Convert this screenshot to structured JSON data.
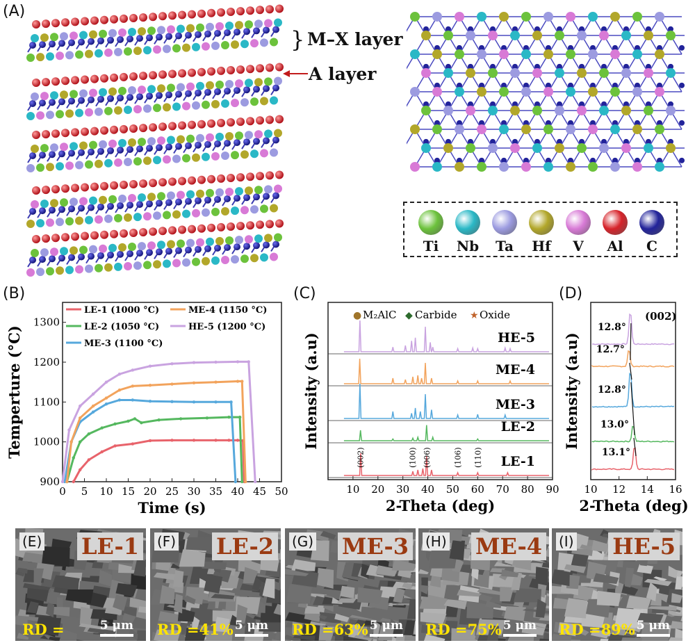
{
  "panels": {
    "A": "(A)",
    "B": "(B)",
    "C": "(C)",
    "D": "(D)",
    "E": "(E)",
    "F": "(F)",
    "G": "(G)",
    "H": "(H)",
    "I": "(I)"
  },
  "structure": {
    "mx_layer_label": "M–X layer",
    "a_layer_label": "A layer",
    "elements": [
      {
        "symbol": "Ti",
        "color": "#6cc23c"
      },
      {
        "symbol": "Nb",
        "color": "#2ab8c6"
      },
      {
        "symbol": "Ta",
        "color": "#9c9be0"
      },
      {
        "symbol": "Hf",
        "color": "#b2a72a"
      },
      {
        "symbol": "V",
        "color": "#d87ad6"
      },
      {
        "symbol": "Al",
        "color": "#d6232a"
      },
      {
        "symbol": "C",
        "color": "#22239a"
      }
    ]
  },
  "chart_data": [
    {
      "type": "line",
      "ylabel": "Temperture  (°C)",
      "xlabel": "Time (s)",
      "xlim": [
        0,
        50
      ],
      "ylim": [
        900,
        1350
      ],
      "xticks": [
        0,
        5,
        10,
        15,
        20,
        25,
        30,
        35,
        40,
        45,
        50
      ],
      "yticks": [
        900,
        1000,
        1100,
        1200,
        1300
      ],
      "legend": "top",
      "series": [
        {
          "name": "LE-1  (1000 °C)",
          "color": "#e8636b",
          "points": [
            [
              2.5,
              900
            ],
            [
              4,
              930
            ],
            [
              6,
              955
            ],
            [
              9,
              975
            ],
            [
              12,
              990
            ],
            [
              16,
              995
            ],
            [
              20,
              1003
            ],
            [
              25,
              1004
            ],
            [
              30,
              1004
            ],
            [
              35,
              1004
            ],
            [
              38,
              1004
            ],
            [
              40,
              1004
            ],
            [
              41.2,
              1003
            ],
            [
              41.5,
              900
            ]
          ]
        },
        {
          "name": "LE-2  (1050 °C)",
          "color": "#55b85f",
          "points": [
            [
              1,
              900
            ],
            [
              2.5,
              960
            ],
            [
              4,
              1000
            ],
            [
              6,
              1020
            ],
            [
              9,
              1035
            ],
            [
              12,
              1045
            ],
            [
              15,
              1052
            ],
            [
              16.5,
              1058
            ],
            [
              18,
              1048
            ],
            [
              22,
              1055
            ],
            [
              27,
              1058
            ],
            [
              33,
              1060
            ],
            [
              38,
              1062
            ],
            [
              40.5,
              1062
            ],
            [
              41,
              900
            ]
          ]
        },
        {
          "name": "ME-3 (1100 °C)",
          "color": "#56a8dc",
          "points": [
            [
              0.5,
              900
            ],
            [
              2,
              1000
            ],
            [
              4,
              1050
            ],
            [
              7,
              1075
            ],
            [
              10,
              1095
            ],
            [
              13,
              1105
            ],
            [
              16,
              1105
            ],
            [
              20,
              1102
            ],
            [
              25,
              1101
            ],
            [
              30,
              1100
            ],
            [
              35,
              1100
            ],
            [
              38.5,
              1100
            ],
            [
              39.5,
              900
            ]
          ]
        },
        {
          "name": "ME-4 (1150 °C)",
          "color": "#f2a35c",
          "points": [
            [
              1,
              900
            ],
            [
              2,
              1000
            ],
            [
              4,
              1060
            ],
            [
              7,
              1090
            ],
            [
              10,
              1110
            ],
            [
              13,
              1130
            ],
            [
              16,
              1140
            ],
            [
              20,
              1142
            ],
            [
              25,
              1145
            ],
            [
              30,
              1148
            ],
            [
              35,
              1150
            ],
            [
              40,
              1152
            ],
            [
              41,
              1152
            ],
            [
              41.8,
              900
            ]
          ]
        },
        {
          "name": "HE-5  (1200 °C)",
          "color": "#c9a3e0",
          "points": [
            [
              0,
              900
            ],
            [
              1.5,
              1030
            ],
            [
              4,
              1090
            ],
            [
              7,
              1120
            ],
            [
              10,
              1150
            ],
            [
              13,
              1170
            ],
            [
              16,
              1180
            ],
            [
              20,
              1190
            ],
            [
              25,
              1196
            ],
            [
              30,
              1199
            ],
            [
              35,
              1200
            ],
            [
              40,
              1201
            ],
            [
              42.5,
              1201
            ],
            [
              44,
              900
            ]
          ]
        }
      ]
    },
    {
      "type": "line",
      "ylabel": "Intensity (a.u)",
      "xlabel": "2-Theta (deg)",
      "xlim": [
        0,
        90
      ],
      "xticks": [
        10,
        20,
        30,
        40,
        50,
        60,
        70,
        80,
        90
      ],
      "series": [
        {
          "name": "HE-5",
          "color": "#c9a3e0",
          "peaks": [
            [
              12.8,
              1.0
            ],
            [
              26,
              0.15
            ],
            [
              31,
              0.2
            ],
            [
              33.5,
              0.35
            ],
            [
              35,
              0.45
            ],
            [
              39,
              0.8
            ],
            [
              41,
              0.3
            ],
            [
              42,
              0.15
            ],
            [
              52,
              0.1
            ],
            [
              58,
              0.12
            ],
            [
              60,
              0.1
            ],
            [
              71,
              0.12
            ],
            [
              73,
              0.1
            ]
          ]
        },
        {
          "name": "ME-4",
          "color": "#f2a35c",
          "peaks": [
            [
              12.7,
              0.9
            ],
            [
              26,
              0.2
            ],
            [
              31,
              0.15
            ],
            [
              34,
              0.25
            ],
            [
              36,
              0.3
            ],
            [
              37.5,
              0.2
            ],
            [
              39,
              0.75
            ],
            [
              41.5,
              0.2
            ],
            [
              52,
              0.1
            ],
            [
              60,
              0.1
            ],
            [
              73,
              0.1
            ]
          ]
        },
        {
          "name": "ME-3",
          "color": "#56a8dc",
          "peaks": [
            [
              12.8,
              1.0
            ],
            [
              26,
              0.2
            ],
            [
              33.5,
              0.15
            ],
            [
              35,
              0.3
            ],
            [
              37,
              0.2
            ],
            [
              39,
              0.7
            ],
            [
              41.5,
              0.25
            ],
            [
              52,
              0.1
            ],
            [
              60,
              0.12
            ],
            [
              71,
              0.1
            ]
          ]
        },
        {
          "name": "LE-2",
          "color": "#55b85f",
          "peaks": [
            [
              13.0,
              0.6
            ],
            [
              26,
              0.1
            ],
            [
              34,
              0.15
            ],
            [
              36,
              0.2
            ],
            [
              39.5,
              0.9
            ],
            [
              42,
              0.2
            ],
            [
              60,
              0.1
            ]
          ]
        },
        {
          "name": "LE-1",
          "color": "#e8636b",
          "peaks": [
            [
              13.1,
              0.8
            ],
            [
              34,
              0.15
            ],
            [
              36,
              0.2
            ],
            [
              38,
              0.25
            ],
            [
              39.5,
              0.7
            ],
            [
              41.5,
              0.2
            ],
            [
              52,
              0.1
            ],
            [
              60,
              0.1
            ],
            [
              72,
              0.1
            ]
          ]
        }
      ],
      "legend": [
        {
          "label": "M₂AlC",
          "marker": "●",
          "color": "#a0752a"
        },
        {
          "label": "Carbide",
          "marker": "◆",
          "color": "#2d6b2d"
        },
        {
          "label": "Oxide",
          "marker": "★",
          "color": "#c0622a"
        }
      ],
      "annotations": [
        "(002)",
        "(100)",
        "(006)",
        "(106)",
        "(110)"
      ]
    },
    {
      "type": "line",
      "ylabel": "Intensity (a.u)",
      "xlabel": "2-Theta (deg)",
      "xlim": [
        10,
        16
      ],
      "xticks": [
        10,
        12,
        14,
        16
      ],
      "title": "(002)",
      "series": [
        {
          "name": "HE-5",
          "color": "#c9a3e0",
          "peak": 12.8,
          "label": "12.8°"
        },
        {
          "name": "ME-4",
          "color": "#f2a35c",
          "peak": 12.7,
          "label": "12.7°"
        },
        {
          "name": "ME-3",
          "color": "#56a8dc",
          "peak": 12.8,
          "label": "12.8°"
        },
        {
          "name": "LE-2",
          "color": "#55b85f",
          "peak": 13.0,
          "label": "13.0°"
        },
        {
          "name": "LE-1",
          "color": "#e8636b",
          "peak": 13.1,
          "label": "13.1°"
        }
      ]
    }
  ],
  "sem": [
    {
      "panel": "(E)",
      "name": "LE-1",
      "rd": "RD =",
      "scale": "5 μm"
    },
    {
      "panel": "(F)",
      "name": "LE-2",
      "rd": "RD =41%",
      "scale": "5 μm"
    },
    {
      "panel": "(G)",
      "name": "ME-3",
      "rd": "RD =63%",
      "scale": "5 μm"
    },
    {
      "panel": "(H)",
      "name": "ME-4",
      "rd": "RD =75%",
      "scale": "5 μm"
    },
    {
      "panel": "(I)",
      "name": "HE-5",
      "rd": "RD =89%",
      "scale": "5 μm"
    }
  ]
}
